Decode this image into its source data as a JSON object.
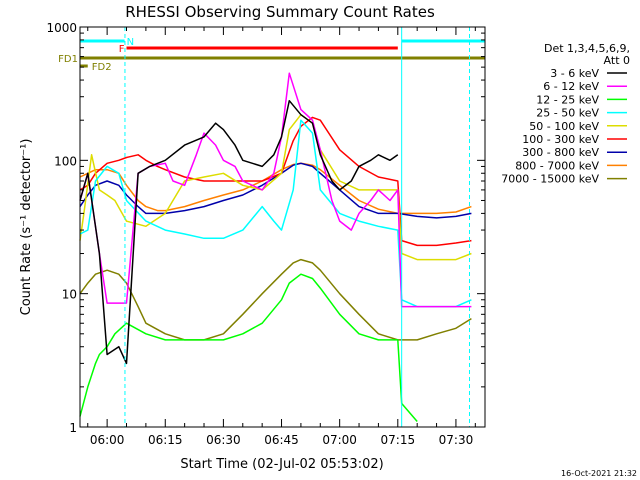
{
  "chart_data": {
    "type": "line",
    "title": "RHESSI Observing Summary Count Rates",
    "xlabel": "Start Time (02-Jul-02 05:53:02)",
    "ylabel": "Count Rate (s⁻¹ detector⁻¹)",
    "yscale": "log",
    "ylim": [
      1,
      1000
    ],
    "xlim_minutes": [
      -7.0,
      97.5
    ],
    "x_unit": "minutes after 06:00 UT",
    "y_ticks": [
      {
        "value": 1,
        "label": "1"
      },
      {
        "value": 10,
        "label": "10"
      },
      {
        "value": 100,
        "label": "100"
      },
      {
        "value": 1000,
        "label": "1000"
      }
    ],
    "x_ticks": [
      {
        "value": 0,
        "label": "06:00"
      },
      {
        "value": 15,
        "label": "06:15"
      },
      {
        "value": 30,
        "label": "06:30"
      },
      {
        "value": 45,
        "label": "06:45"
      },
      {
        "value": 60,
        "label": "07:00"
      },
      {
        "value": 75,
        "label": "07:15"
      },
      {
        "value": 90,
        "label": "07:30"
      }
    ],
    "legend_header": [
      "Det 1,3,4,5,6,9,",
      "Att 0"
    ],
    "legend_position": "right",
    "series": [
      {
        "name": "3 - 6 keV",
        "color": "#000000",
        "x": [
          -7,
          -5,
          -2,
          0,
          3,
          5,
          8,
          11,
          15,
          20,
          25,
          28,
          30,
          33,
          35,
          40,
          43,
          45,
          47,
          50,
          53,
          55,
          58,
          60,
          63,
          65,
          68,
          70,
          73,
          75
        ],
        "y": [
          50,
          80,
          20,
          3.5,
          4,
          3,
          80,
          90,
          100,
          130,
          150,
          190,
          170,
          130,
          100,
          90,
          110,
          150,
          280,
          220,
          190,
          110,
          70,
          60,
          70,
          90,
          100,
          110,
          100,
          110
        ]
      },
      {
        "name": "6 - 12 keV",
        "color": "#ff00ff",
        "x": [
          -7,
          -5,
          -2,
          0,
          3,
          5,
          8,
          11,
          15,
          17,
          20,
          23,
          25,
          28,
          30,
          33,
          35,
          40,
          43,
          45,
          47,
          50,
          53,
          55,
          58,
          60,
          63,
          65,
          68,
          70,
          73,
          75,
          76,
          80,
          85,
          90,
          94
        ],
        "y": [
          50,
          80,
          20,
          8.5,
          8.5,
          8.5,
          80,
          90,
          95,
          70,
          65,
          110,
          160,
          130,
          100,
          90,
          70,
          60,
          80,
          150,
          450,
          240,
          200,
          120,
          50,
          35,
          30,
          40,
          50,
          60,
          50,
          60,
          8,
          8,
          8,
          8,
          8
        ]
      },
      {
        "name": "12 - 25 keV",
        "color": "#00ff00",
        "x": [
          -7,
          -5,
          -3,
          -2,
          0,
          2,
          5,
          10,
          15,
          20,
          25,
          30,
          35,
          40,
          45,
          47,
          50,
          53,
          55,
          60,
          65,
          70,
          75,
          76,
          80
        ],
        "y": [
          1.2,
          2,
          3,
          3.5,
          4,
          5,
          6,
          5,
          4.5,
          4.5,
          4.5,
          4.5,
          5,
          6,
          9,
          12,
          14,
          13,
          11,
          7,
          5,
          4.5,
          4.5,
          1.5,
          1.1
        ]
      },
      {
        "name": "25 - 50 keV",
        "color": "#00ffff",
        "x": [
          -7,
          -5,
          -3,
          0,
          3,
          5,
          10,
          15,
          20,
          25,
          30,
          35,
          40,
          43,
          45,
          48,
          50,
          53,
          55,
          60,
          65,
          70,
          75,
          76,
          80,
          85,
          90,
          94
        ],
        "y": [
          28,
          30,
          70,
          90,
          80,
          50,
          35,
          30,
          28,
          26,
          26,
          30,
          45,
          35,
          30,
          60,
          200,
          160,
          60,
          40,
          35,
          32,
          30,
          9,
          8,
          8,
          8,
          9
        ]
      },
      {
        "name": "50 - 100 keV",
        "color": "#dddd00",
        "x": [
          -7,
          -6,
          -4,
          -2,
          0,
          2,
          5,
          10,
          15,
          20,
          25,
          30,
          35,
          40,
          45,
          47,
          50,
          53,
          55,
          60,
          65,
          70,
          75,
          76,
          80,
          85,
          90,
          94
        ],
        "y": [
          25,
          40,
          110,
          60,
          55,
          50,
          35,
          32,
          40,
          70,
          75,
          80,
          65,
          60,
          80,
          170,
          220,
          190,
          120,
          70,
          60,
          60,
          60,
          20,
          18,
          18,
          18,
          20
        ]
      },
      {
        "name": "100 - 300 keV",
        "color": "#ff0000",
        "x": [
          -7,
          -5,
          -3,
          0,
          3,
          5,
          8,
          10,
          13,
          15,
          20,
          25,
          30,
          35,
          40,
          45,
          48,
          50,
          53,
          55,
          60,
          65,
          70,
          75,
          76,
          80,
          85,
          90,
          94
        ],
        "y": [
          60,
          65,
          80,
          95,
          100,
          105,
          110,
          100,
          90,
          85,
          75,
          70,
          70,
          70,
          70,
          80,
          140,
          180,
          210,
          200,
          120,
          90,
          75,
          70,
          25,
          23,
          23,
          24,
          25
        ]
      },
      {
        "name": "300 - 800 keV",
        "color": "#0000aa",
        "x": [
          -7,
          -5,
          -3,
          0,
          3,
          5,
          8,
          10,
          13,
          15,
          20,
          25,
          30,
          35,
          40,
          45,
          48,
          50,
          53,
          55,
          60,
          65,
          70,
          75,
          80,
          85,
          90,
          94
        ],
        "y": [
          45,
          55,
          65,
          70,
          65,
          55,
          45,
          40,
          40,
          40,
          42,
          45,
          50,
          55,
          65,
          80,
          92,
          95,
          90,
          80,
          60,
          45,
          40,
          40,
          38,
          37,
          38,
          40
        ]
      },
      {
        "name": "800 - 7000 keV",
        "color": "#ff8000",
        "x": [
          -7,
          -5,
          -3,
          0,
          3,
          5,
          8,
          10,
          13,
          15,
          20,
          25,
          30,
          35,
          40,
          45,
          48,
          50,
          53,
          55,
          60,
          65,
          70,
          75,
          80,
          85,
          90,
          94
        ],
        "y": [
          75,
          80,
          85,
          85,
          80,
          65,
          50,
          45,
          42,
          42,
          45,
          50,
          55,
          60,
          70,
          85,
          93,
          95,
          92,
          85,
          65,
          50,
          43,
          40,
          40,
          40,
          41,
          45
        ]
      },
      {
        "name": "7000 - 15000 keV",
        "color": "#808000",
        "x": [
          -7,
          -5,
          -3,
          0,
          3,
          5,
          8,
          10,
          15,
          20,
          25,
          30,
          35,
          40,
          45,
          48,
          50,
          53,
          55,
          60,
          65,
          70,
          75,
          80,
          85,
          90,
          94
        ],
        "y": [
          10,
          12,
          14,
          15,
          14,
          12,
          8,
          6,
          5,
          4.5,
          4.5,
          5,
          7,
          10,
          14,
          17,
          18,
          17,
          15,
          10,
          7,
          5,
          4.5,
          4.5,
          5,
          5.5,
          6.5
        ]
      }
    ],
    "flags": [
      {
        "label": "N",
        "color": "#00ffff",
        "start": -7,
        "end": 4.5
      },
      {
        "label": "F",
        "color": "#ff0000",
        "start": 5,
        "end": 75
      },
      {
        "label": "FD1",
        "color": "#808000",
        "start": -7,
        "end": 97.5
      },
      {
        "label": "FD2",
        "color": "#808000",
        "start": -7,
        "end": -5
      },
      {
        "label": "",
        "color": "#00ffff",
        "start": 76,
        "end": 97.5
      }
    ],
    "night_boundaries": [
      {
        "at": -7,
        "style": "solid"
      },
      {
        "at": 4.6,
        "style": "dashed"
      },
      {
        "at": 76,
        "style": "solid"
      },
      {
        "at": 93.5,
        "style": "dashed"
      }
    ]
  },
  "footer": {
    "timestamp": "16-Oct-2021 21:32"
  }
}
